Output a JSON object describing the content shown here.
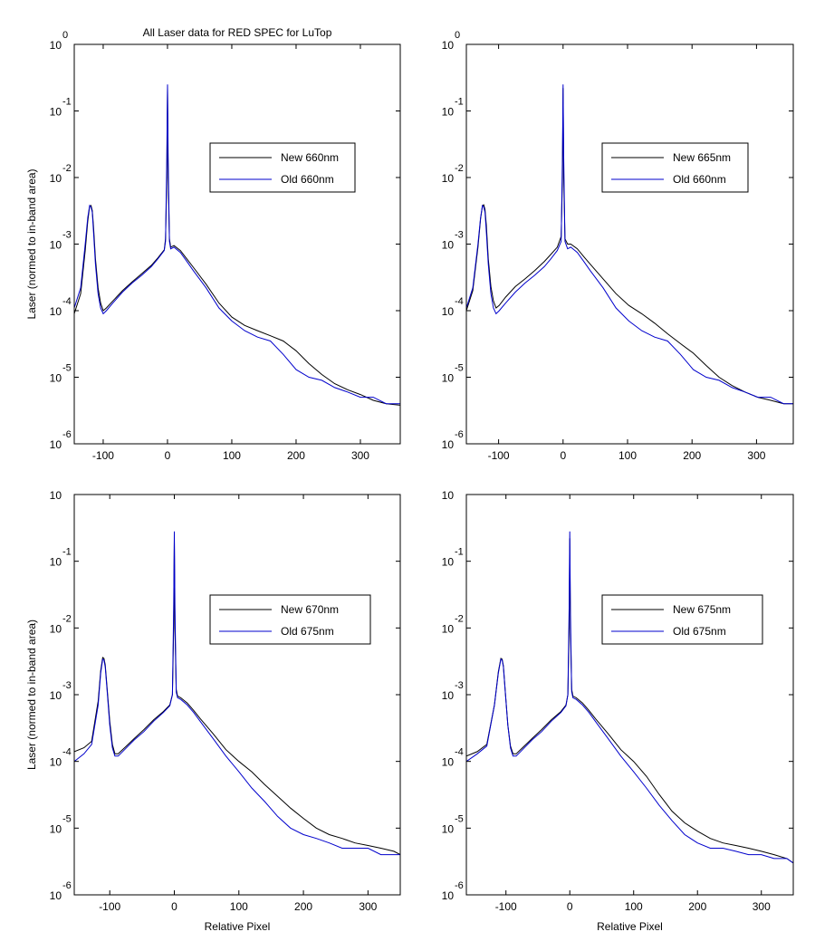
{
  "chart_data": [
    {
      "type": "line",
      "title": "All Laser data for RED SPEC for LuTop",
      "ylabel": "Laser (normed to in-band area)",
      "xlabel": "",
      "xlim": [
        -145,
        362
      ],
      "ylim": [
        1e-06,
        1
      ],
      "yscale": "log",
      "xticks": [
        -100,
        0,
        100,
        200,
        300
      ],
      "yticks": [
        1,
        0.1,
        0.01,
        0.001,
        0.0001,
        1e-05,
        1e-06
      ],
      "ytick_labels": [
        {
          "base": "10",
          "exp": "0"
        },
        {
          "base": "10",
          "exp": "-1"
        },
        {
          "base": "10",
          "exp": "-2"
        },
        {
          "base": "10",
          "exp": "-3"
        },
        {
          "base": "10",
          "exp": "-4"
        },
        {
          "base": "10",
          "exp": "-5"
        },
        {
          "base": "10",
          "exp": "-6"
        }
      ],
      "legend": {
        "position": "right",
        "entries": [
          "New 660nm",
          "Old 660nm"
        ]
      },
      "series": [
        {
          "name": "New 660nm",
          "color": "#000000",
          "x": [
            -145,
            -135,
            -128,
            -124,
            -121,
            -119,
            -117,
            -115,
            -112,
            -108,
            -104,
            -100,
            -95,
            -85,
            -70,
            -55,
            -40,
            -25,
            -15,
            -5,
            -3,
            -1,
            0,
            1,
            3,
            5,
            10,
            20,
            30,
            40,
            60,
            80,
            100,
            120,
            140,
            160,
            180,
            200,
            220,
            240,
            260,
            280,
            300,
            320,
            340,
            362
          ],
          "y": [
            9e-05,
            0.00018,
            0.0008,
            0.0022,
            0.0037,
            0.0038,
            0.0032,
            0.0018,
            0.0006,
            0.00022,
            0.00013,
            0.0001,
            0.00011,
            0.00014,
            0.0002,
            0.00027,
            0.00036,
            0.00048,
            0.00062,
            0.00082,
            0.0012,
            0.01,
            0.22,
            0.01,
            0.0012,
            0.0009,
            0.00095,
            0.0008,
            0.0006,
            0.00045,
            0.00025,
            0.00013,
            8e-05,
            6e-05,
            5e-05,
            4.2e-05,
            3.5e-05,
            2.5e-05,
            1.6e-05,
            1.1e-05,
            8e-06,
            6.5e-06,
            5.5e-06,
            4.5e-06,
            4e-06,
            3.8e-06
          ]
        },
        {
          "name": "Old 660nm",
          "color": "#0000cc",
          "x": [
            -145,
            -135,
            -128,
            -124,
            -121,
            -119,
            -117,
            -115,
            -112,
            -108,
            -104,
            -100,
            -95,
            -85,
            -70,
            -55,
            -40,
            -25,
            -15,
            -5,
            -3,
            -1,
            0,
            1,
            3,
            5,
            10,
            20,
            30,
            40,
            60,
            80,
            100,
            120,
            140,
            160,
            180,
            200,
            220,
            240,
            260,
            280,
            300,
            320,
            340,
            362
          ],
          "y": [
            0.00011,
            0.00022,
            0.001,
            0.0025,
            0.0038,
            0.0036,
            0.003,
            0.0015,
            0.0005,
            0.00018,
            0.00011,
            9e-05,
            0.0001,
            0.00013,
            0.00019,
            0.00026,
            0.00034,
            0.00046,
            0.0006,
            0.0008,
            0.0011,
            0.02,
            0.25,
            0.02,
            0.0011,
            0.00085,
            0.0009,
            0.00075,
            0.00055,
            0.0004,
            0.00022,
            0.00011,
            7e-05,
            5e-05,
            4e-05,
            3.5e-05,
            2.2e-05,
            1.3e-05,
            1e-05,
            9e-06,
            7e-06,
            6e-06,
            5e-06,
            5e-06,
            4e-06,
            4e-06
          ]
        }
      ]
    },
    {
      "type": "line",
      "title": "",
      "ylabel": "",
      "xlabel": "",
      "xlim": [
        -150,
        357
      ],
      "ylim": [
        1e-06,
        1
      ],
      "yscale": "log",
      "xticks": [
        -100,
        0,
        100,
        200,
        300
      ],
      "yticks": [
        1,
        0.1,
        0.01,
        0.001,
        0.0001,
        1e-05,
        1e-06
      ],
      "ytick_labels": [
        {
          "base": "10",
          "exp": "0"
        },
        {
          "base": "10",
          "exp": "-1"
        },
        {
          "base": "10",
          "exp": "-2"
        },
        {
          "base": "10",
          "exp": "-3"
        },
        {
          "base": "10",
          "exp": "-4"
        },
        {
          "base": "10",
          "exp": "-5"
        },
        {
          "base": "10",
          "exp": "-6"
        }
      ],
      "legend": {
        "position": "right",
        "entries": [
          "New 665nm",
          "Old 660nm"
        ]
      },
      "series": [
        {
          "name": "New 665nm",
          "color": "#000000",
          "x": [
            -150,
            -140,
            -132,
            -128,
            -125,
            -123,
            -121,
            -119,
            -116,
            -112,
            -108,
            -104,
            -99,
            -89,
            -74,
            -59,
            -44,
            -29,
            -19,
            -9,
            -3,
            -1,
            0,
            1,
            3,
            7,
            12,
            22,
            32,
            42,
            62,
            82,
            102,
            122,
            142,
            162,
            182,
            202,
            222,
            242,
            262,
            282,
            302,
            322,
            342,
            357
          ],
          "y": [
            0.0001,
            0.0002,
            0.0009,
            0.0024,
            0.0038,
            0.0039,
            0.0033,
            0.0019,
            0.0006,
            0.00023,
            0.00014,
            0.00011,
            0.00012,
            0.00016,
            0.00023,
            0.0003,
            0.0004,
            0.00055,
            0.0007,
            0.0009,
            0.0013,
            0.01,
            0.22,
            0.01,
            0.0012,
            0.001,
            0.001,
            0.00085,
            0.00065,
            0.0005,
            0.0003,
            0.00018,
            0.00012,
            9e-05,
            6.5e-05,
            4.5e-05,
            3.2e-05,
            2.3e-05,
            1.5e-05,
            1e-05,
            7.5e-06,
            6e-06,
            5e-06,
            4.5e-06,
            4e-06,
            4e-06
          ]
        },
        {
          "name": "Old 660nm",
          "color": "#0000cc",
          "x": [
            -150,
            -140,
            -132,
            -128,
            -125,
            -123,
            -121,
            -119,
            -116,
            -112,
            -108,
            -104,
            -99,
            -89,
            -74,
            -59,
            -44,
            -29,
            -19,
            -9,
            -3,
            -1,
            0,
            1,
            3,
            7,
            12,
            22,
            32,
            42,
            62,
            82,
            102,
            122,
            142,
            162,
            182,
            202,
            222,
            242,
            262,
            282,
            302,
            322,
            342,
            357
          ],
          "y": [
            0.00011,
            0.00022,
            0.001,
            0.0025,
            0.0038,
            0.0036,
            0.003,
            0.0015,
            0.0005,
            0.00018,
            0.00011,
            9e-05,
            0.0001,
            0.00013,
            0.00019,
            0.00026,
            0.00034,
            0.00046,
            0.0006,
            0.0008,
            0.0011,
            0.02,
            0.25,
            0.02,
            0.0011,
            0.00085,
            0.0009,
            0.00075,
            0.00055,
            0.0004,
            0.00022,
            0.00011,
            7e-05,
            5e-05,
            4e-05,
            3.5e-05,
            2.2e-05,
            1.3e-05,
            1e-05,
            9e-06,
            7e-06,
            6e-06,
            5e-06,
            5e-06,
            4e-06,
            4e-06
          ]
        }
      ]
    },
    {
      "type": "line",
      "title": "",
      "ylabel": "Laser (normed to in-band area)",
      "xlabel": "Relative Pixel",
      "xlim": [
        -155,
        350
      ],
      "ylim": [
        1e-06,
        1
      ],
      "yscale": "log",
      "xticks": [
        -100,
        0,
        100,
        200,
        300
      ],
      "yticks": [
        1,
        0.1,
        0.01,
        0.001,
        0.0001,
        1e-05,
        1e-06
      ],
      "ytick_labels": [
        {
          "base": "10",
          "exp": ""
        },
        {
          "base": "10",
          "exp": "-1"
        },
        {
          "base": "10",
          "exp": "-2"
        },
        {
          "base": "10",
          "exp": "-3"
        },
        {
          "base": "10",
          "exp": "-4"
        },
        {
          "base": "10",
          "exp": "-5"
        },
        {
          "base": "10",
          "exp": "-6"
        }
      ],
      "legend": {
        "position": "right",
        "entries": [
          "New 670nm",
          "Old 675nm"
        ]
      },
      "series": [
        {
          "name": "New 670nm",
          "color": "#000000",
          "x": [
            -155,
            -140,
            -128,
            -118,
            -114,
            -111,
            -109,
            -107,
            -104,
            -100,
            -96,
            -92,
            -87,
            -77,
            -62,
            -47,
            -32,
            -17,
            -7,
            -3,
            -1,
            0,
            1,
            3,
            5,
            10,
            20,
            30,
            40,
            60,
            80,
            100,
            120,
            140,
            160,
            180,
            200,
            220,
            240,
            260,
            280,
            300,
            320,
            340,
            350
          ],
          "y": [
            0.00014,
            0.00016,
            0.0002,
            0.0008,
            0.0023,
            0.0036,
            0.0035,
            0.0028,
            0.0012,
            0.0004,
            0.00018,
            0.00013,
            0.00013,
            0.00016,
            0.00022,
            0.0003,
            0.00042,
            0.00056,
            0.0007,
            0.001,
            0.01,
            0.2,
            0.01,
            0.0012,
            0.00095,
            0.0009,
            0.00075,
            0.00058,
            0.00044,
            0.00026,
            0.00015,
            0.0001,
            7e-05,
            4.5e-05,
            3e-05,
            2e-05,
            1.4e-05,
            1e-05,
            8e-06,
            7e-06,
            6e-06,
            5.5e-06,
            5e-06,
            4.5e-06,
            4e-06
          ]
        },
        {
          "name": "Old 675nm",
          "color": "#0000cc",
          "x": [
            -155,
            -140,
            -128,
            -118,
            -114,
            -111,
            -109,
            -107,
            -104,
            -100,
            -96,
            -92,
            -87,
            -77,
            -62,
            -47,
            -32,
            -17,
            -7,
            -3,
            -1,
            0,
            1,
            3,
            5,
            10,
            20,
            30,
            40,
            60,
            80,
            100,
            120,
            140,
            160,
            180,
            200,
            220,
            240,
            260,
            280,
            300,
            320,
            340,
            350
          ],
          "y": [
            0.0001,
            0.00013,
            0.00018,
            0.0007,
            0.0021,
            0.0034,
            0.0033,
            0.0026,
            0.0011,
            0.00035,
            0.00016,
            0.00012,
            0.00012,
            0.00015,
            0.00021,
            0.00028,
            0.0004,
            0.00054,
            0.00068,
            0.001,
            0.02,
            0.28,
            0.02,
            0.0011,
            0.0009,
            0.00085,
            0.0007,
            0.00054,
            0.0004,
            0.00022,
            0.00012,
            7e-05,
            4e-05,
            2.5e-05,
            1.5e-05,
            1e-05,
            8e-06,
            7e-06,
            6e-06,
            5e-06,
            5e-06,
            5e-06,
            4e-06,
            4e-06,
            4e-06
          ]
        }
      ]
    },
    {
      "type": "line",
      "title": "",
      "ylabel": "",
      "xlabel": "Relative Pixel",
      "xlim": [
        -162,
        350
      ],
      "ylim": [
        1e-06,
        1
      ],
      "yscale": "log",
      "xticks": [
        -100,
        0,
        100,
        200,
        300
      ],
      "yticks": [
        1,
        0.1,
        0.01,
        0.001,
        0.0001,
        1e-05,
        1e-06
      ],
      "ytick_labels": [
        {
          "base": "10",
          "exp": ""
        },
        {
          "base": "10",
          "exp": "-1"
        },
        {
          "base": "10",
          "exp": "-2"
        },
        {
          "base": "10",
          "exp": "-3"
        },
        {
          "base": "10",
          "exp": "-4"
        },
        {
          "base": "10",
          "exp": "-5"
        },
        {
          "base": "10",
          "exp": "-6"
        }
      ],
      "legend": {
        "position": "right",
        "entries": [
          "New 675nm",
          "Old 675nm"
        ]
      },
      "series": [
        {
          "name": "New 675nm",
          "color": "#000000",
          "x": [
            -162,
            -145,
            -130,
            -118,
            -112,
            -108,
            -106,
            -104,
            -101,
            -97,
            -93,
            -89,
            -84,
            -74,
            -59,
            -44,
            -29,
            -14,
            -6,
            -3,
            -1,
            0,
            1,
            3,
            5,
            10,
            20,
            30,
            40,
            60,
            80,
            100,
            120,
            140,
            160,
            180,
            200,
            220,
            240,
            260,
            280,
            300,
            320,
            340,
            350
          ],
          "y": [
            0.00012,
            0.00014,
            0.00018,
            0.0007,
            0.0022,
            0.0035,
            0.0034,
            0.0027,
            0.0011,
            0.00035,
            0.00017,
            0.00013,
            0.00013,
            0.00016,
            0.00022,
            0.0003,
            0.00042,
            0.00056,
            0.0007,
            0.001,
            0.01,
            0.22,
            0.01,
            0.0012,
            0.00095,
            0.0009,
            0.00075,
            0.00058,
            0.00044,
            0.00026,
            0.00015,
            0.0001,
            6e-05,
            3.2e-05,
            1.8e-05,
            1.2e-05,
            9e-06,
            7e-06,
            6e-06,
            5.5e-06,
            5e-06,
            4.5e-06,
            4e-06,
            3.5e-06,
            3e-06
          ]
        },
        {
          "name": "Old 675nm",
          "color": "#0000cc",
          "x": [
            -162,
            -145,
            -130,
            -118,
            -112,
            -108,
            -106,
            -104,
            -101,
            -97,
            -93,
            -89,
            -84,
            -74,
            -59,
            -44,
            -29,
            -14,
            -6,
            -3,
            -1,
            0,
            1,
            3,
            5,
            10,
            20,
            30,
            40,
            60,
            80,
            100,
            120,
            140,
            160,
            180,
            200,
            220,
            240,
            260,
            280,
            300,
            320,
            340,
            350
          ],
          "y": [
            0.0001,
            0.00013,
            0.00017,
            0.0007,
            0.0021,
            0.0034,
            0.0033,
            0.0026,
            0.0011,
            0.00035,
            0.00016,
            0.00012,
            0.00012,
            0.00015,
            0.00021,
            0.00028,
            0.0004,
            0.00054,
            0.00068,
            0.001,
            0.02,
            0.28,
            0.02,
            0.0011,
            0.0009,
            0.00085,
            0.0007,
            0.00054,
            0.0004,
            0.00022,
            0.00012,
            7e-05,
            4e-05,
            2.2e-05,
            1.3e-05,
            8e-06,
            6e-06,
            5e-06,
            5e-06,
            4.5e-06,
            4e-06,
            4e-06,
            3.5e-06,
            3.5e-06,
            3e-06
          ]
        }
      ]
    }
  ]
}
